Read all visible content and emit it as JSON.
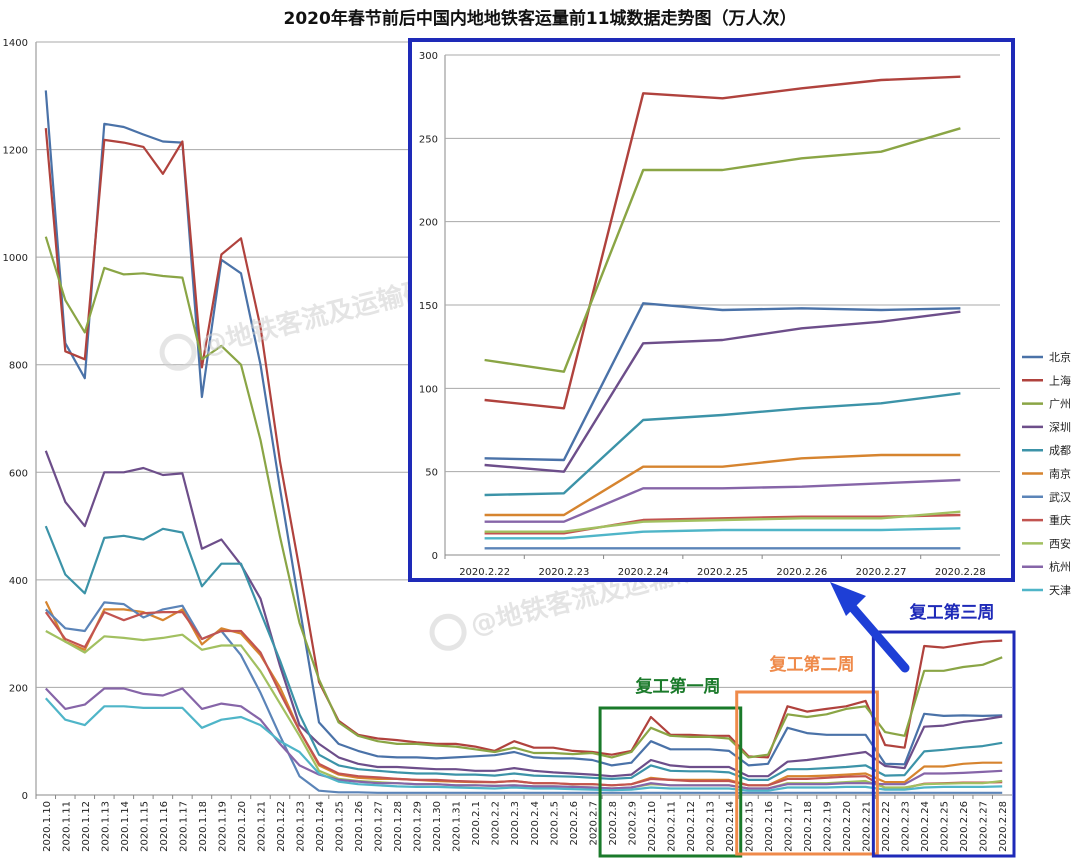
{
  "chart_data": {
    "type": "line",
    "title": "2020年春节前后中国内地地铁客运量前11城数据走势图（万人次）",
    "ylim": [
      0,
      1400
    ],
    "yticks": [
      0,
      200,
      400,
      600,
      800,
      1000,
      1200,
      1400
    ],
    "colors": {
      "北京": "#4a72a8",
      "上海": "#b0423d",
      "广州": "#8aa545",
      "深圳": "#6d4e8a",
      "成都": "#3c93a8",
      "南京": "#d6842f",
      "武汉": "#5b84b8",
      "重庆": "#c25450",
      "西安": "#a2c060",
      "杭州": "#8665a8",
      "天津": "#4fb5c8"
    },
    "x": [
      "2020.1.10",
      "2020.1.11",
      "2020.1.12",
      "2020.1.13",
      "2020.1.14",
      "2020.1.15",
      "2020.1.16",
      "2020.1.17",
      "2020.1.18",
      "2020.1.19",
      "2020.1.20",
      "2020.1.21",
      "2020.1.22",
      "2020.1.23",
      "2020.1.24",
      "2020.1.25",
      "2020.1.26",
      "2020.1.27",
      "2020.1.28",
      "2020.1.29",
      "2020.1.30",
      "2020.1.31",
      "2020.2.1",
      "2020.2.2",
      "2020.2.3",
      "2020.2.4",
      "2020.2.5",
      "2020.2.6",
      "2020.2.7",
      "2020.2.8",
      "2020.2.9",
      "2020.2.10",
      "2020.2.11",
      "2020.2.12",
      "2020.2.13",
      "2020.2.14",
      "2020.2.15",
      "2020.2.16",
      "2020.2.17",
      "2020.2.18",
      "2020.2.19",
      "2020.2.20",
      "2020.2.21",
      "2020.2.22",
      "2020.2.23",
      "2020.2.24",
      "2020.2.25",
      "2020.2.26",
      "2020.2.27",
      "2020.2.28"
    ],
    "series": [
      {
        "name": "北京",
        "values": [
          1310,
          840,
          775,
          1248,
          1242,
          1228,
          1215,
          1213,
          740,
          995,
          970,
          800,
          570,
          350,
          135,
          95,
          82,
          72,
          70,
          70,
          68,
          70,
          72,
          74,
          80,
          70,
          68,
          68,
          65,
          55,
          60,
          100,
          85,
          85,
          85,
          82,
          55,
          58,
          125,
          115,
          112,
          112,
          112,
          58,
          57,
          151,
          147,
          148,
          147,
          148
        ]
      },
      {
        "name": "上海",
        "values": [
          1240,
          825,
          810,
          1218,
          1213,
          1205,
          1155,
          1215,
          795,
          1005,
          1035,
          870,
          620,
          420,
          210,
          138,
          112,
          105,
          102,
          98,
          95,
          95,
          90,
          82,
          100,
          88,
          88,
          82,
          80,
          75,
          82,
          145,
          112,
          112,
          110,
          110,
          72,
          70,
          165,
          155,
          160,
          165,
          175,
          93,
          88,
          277,
          274,
          280,
          285,
          287
        ]
      },
      {
        "name": "广州",
        "values": [
          1038,
          920,
          860,
          980,
          968,
          970,
          965,
          962,
          810,
          835,
          800,
          660,
          480,
          320,
          215,
          135,
          110,
          100,
          95,
          95,
          92,
          90,
          85,
          80,
          88,
          78,
          78,
          76,
          78,
          70,
          80,
          125,
          110,
          108,
          108,
          105,
          70,
          75,
          150,
          145,
          150,
          160,
          165,
          117,
          110,
          231,
          231,
          238,
          242,
          256
        ]
      },
      {
        "name": "深圳",
        "values": [
          640,
          545,
          500,
          600,
          600,
          608,
          595,
          598,
          458,
          475,
          428,
          365,
          240,
          130,
          95,
          70,
          58,
          52,
          52,
          50,
          48,
          48,
          45,
          45,
          50,
          45,
          42,
          40,
          38,
          35,
          38,
          65,
          55,
          52,
          52,
          52,
          35,
          35,
          62,
          65,
          70,
          75,
          80,
          54,
          50,
          127,
          129,
          136,
          140,
          146
        ]
      },
      {
        "name": "成都",
        "values": [
          500,
          410,
          375,
          478,
          482,
          475,
          495,
          488,
          388,
          430,
          430,
          340,
          250,
          150,
          75,
          55,
          48,
          45,
          42,
          40,
          40,
          38,
          38,
          36,
          40,
          36,
          35,
          34,
          32,
          30,
          32,
          55,
          45,
          44,
          44,
          42,
          28,
          28,
          48,
          48,
          50,
          52,
          55,
          36,
          37,
          81,
          84,
          88,
          91,
          97
        ]
      },
      {
        "name": "南京",
        "values": [
          360,
          285,
          270,
          345,
          345,
          340,
          325,
          345,
          280,
          310,
          300,
          260,
          200,
          120,
          55,
          38,
          32,
          30,
          30,
          28,
          26,
          25,
          24,
          24,
          26,
          22,
          22,
          20,
          20,
          18,
          20,
          32,
          28,
          28,
          28,
          28,
          18,
          18,
          35,
          35,
          36,
          38,
          40,
          24,
          24,
          53,
          53,
          58,
          60,
          60
        ]
      },
      {
        "name": "武汉",
        "values": [
          345,
          310,
          305,
          358,
          355,
          330,
          345,
          352,
          290,
          305,
          260,
          190,
          110,
          35,
          8,
          5,
          5,
          4,
          4,
          4,
          4,
          4,
          4,
          4,
          4,
          4,
          4,
          4,
          4,
          4,
          4,
          4,
          4,
          4,
          4,
          4,
          4,
          4,
          4,
          4,
          4,
          4,
          4,
          4,
          4,
          4,
          4,
          4,
          4,
          4
        ]
      },
      {
        "name": "重庆",
        "values": [
          340,
          290,
          275,
          340,
          325,
          338,
          340,
          340,
          290,
          305,
          305,
          265,
          190,
          120,
          58,
          40,
          35,
          33,
          30,
          28,
          28,
          26,
          25,
          24,
          26,
          22,
          22,
          20,
          20,
          18,
          20,
          30,
          28,
          26,
          26,
          26,
          18,
          18,
          30,
          30,
          32,
          34,
          35,
          13,
          13,
          21,
          22,
          23,
          23,
          24
        ]
      },
      {
        "name": "西安",
        "values": [
          305,
          285,
          265,
          295,
          292,
          288,
          292,
          298,
          270,
          278,
          278,
          230,
          170,
          110,
          45,
          30,
          26,
          24,
          22,
          20,
          20,
          18,
          18,
          17,
          18,
          16,
          16,
          15,
          14,
          12,
          14,
          20,
          18,
          18,
          18,
          18,
          12,
          12,
          22,
          22,
          22,
          24,
          26,
          14,
          14,
          20,
          21,
          22,
          22,
          26
        ]
      },
      {
        "name": "杭州",
        "values": [
          198,
          160,
          168,
          198,
          198,
          188,
          185,
          198,
          160,
          170,
          165,
          140,
          95,
          55,
          38,
          28,
          25,
          22,
          22,
          20,
          20,
          18,
          18,
          17,
          18,
          16,
          16,
          15,
          14,
          12,
          14,
          22,
          18,
          18,
          18,
          18,
          12,
          12,
          20,
          20,
          20,
          22,
          22,
          20,
          20,
          40,
          40,
          41,
          43,
          45
        ]
      },
      {
        "name": "天津",
        "values": [
          180,
          140,
          130,
          165,
          165,
          162,
          162,
          162,
          125,
          140,
          145,
          130,
          100,
          80,
          40,
          25,
          20,
          18,
          16,
          15,
          15,
          14,
          13,
          12,
          14,
          12,
          12,
          11,
          10,
          9,
          10,
          14,
          12,
          12,
          12,
          12,
          8,
          8,
          14,
          14,
          14,
          15,
          15,
          10,
          10,
          14,
          15,
          15,
          15,
          16
        ]
      }
    ],
    "inset": {
      "x": [
        "2020.2.22",
        "2020.2.23",
        "2020.2.24",
        "2020.2.25",
        "2020.2.26",
        "2020.2.27",
        "2020.2.28"
      ],
      "ylim": [
        0,
        300
      ],
      "yticks": [
        0,
        50,
        100,
        150,
        200,
        250,
        300
      ]
    }
  },
  "annotations": {
    "week1": "复工第一周",
    "week2": "复工第二周",
    "week3": "复工第三周",
    "week1_color": "#1a7a2a",
    "week2_color": "#ef8a4a",
    "week3_color": "#1e2ab8"
  },
  "watermark": "@地铁客流及运输研究闲华"
}
